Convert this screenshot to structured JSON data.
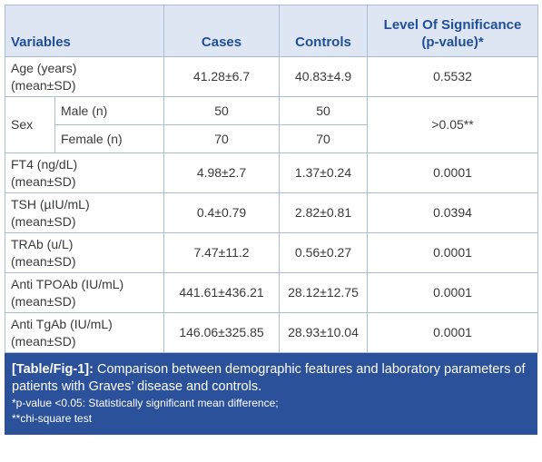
{
  "table": {
    "header": [
      "Variables",
      "Cases",
      "Controls",
      [
        "Level Of Significance",
        "(p-value)*"
      ]
    ],
    "rows": [
      {
        "variable": [
          "Age (years)",
          "(mean±SD)"
        ],
        "cases": "41.28±6.7",
        "controls": "40.83±4.9",
        "p": "0.5532"
      },
      {
        "variable": "Sex",
        "sub": [
          {
            "label": "Male (n)",
            "cases": "50",
            "controls": "50"
          },
          {
            "label": "Female (n)",
            "cases": "70",
            "controls": "70"
          }
        ],
        "p": ">0.05**"
      },
      {
        "variable": [
          "FT4 (ng/dL)",
          "(mean±SD)"
        ],
        "cases": "4.98±2.7",
        "controls": "1.37±0.24",
        "p": "0.0001"
      },
      {
        "variable": [
          "TSH (µIU/mL)",
          "(mean±SD)"
        ],
        "cases": "0.4±0.79",
        "controls": "2.82±0.81",
        "p": "0.0394"
      },
      {
        "variable": [
          "TRAb (u/L)",
          "(mean±SD)"
        ],
        "cases": "7.47±11.2",
        "controls": "0.56±0.27",
        "p": "0.0001"
      },
      {
        "variable": [
          "Anti TPOAb (IU/mL)",
          "(mean±SD)"
        ],
        "cases": "441.61±436.21",
        "controls": "28.12±12.75",
        "p": "0.0001"
      },
      {
        "variable": [
          "Anti TgAb (IU/mL)",
          "(mean±SD)"
        ],
        "cases": "146.06±325.85",
        "controls": "28.93±10.04",
        "p": "0.0001"
      }
    ]
  },
  "caption": {
    "label": "[Table/Fig-1]:",
    "text": "Comparison between demographic features and laboratory parameters of patients with Graves’ disease and controls.",
    "notes": [
      "*p-value <0.05: Statistically significant mean difference;",
      "**chi-square test"
    ]
  }
}
